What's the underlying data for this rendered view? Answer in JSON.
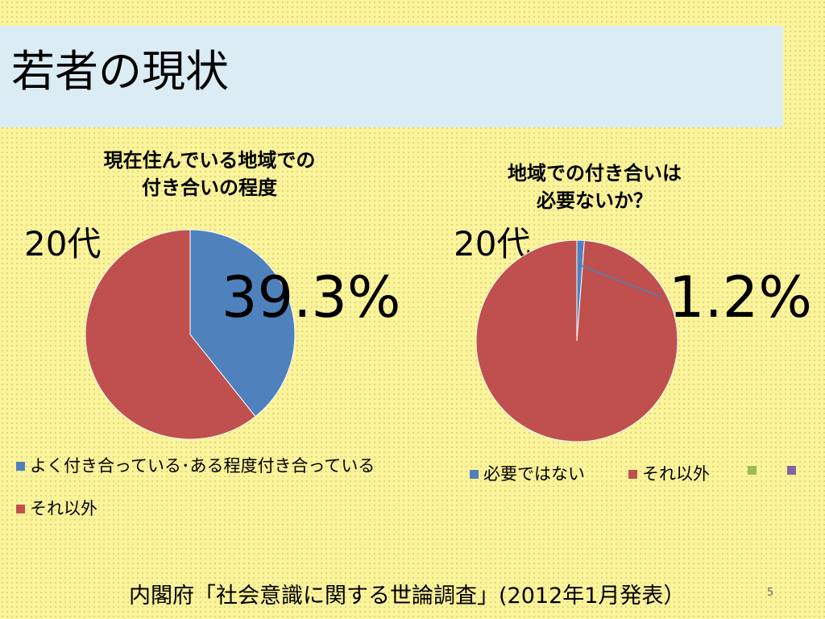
{
  "slide": {
    "title": "若者の現状",
    "source": "内閣府「社会意識に関する世論調査」(2012年1月発表）",
    "page_number": "5"
  },
  "colors": {
    "series_blue": "#4f81bd",
    "series_red": "#c0504d",
    "series_green": "#9bbb59",
    "series_purple": "#8064a2"
  },
  "charts": {
    "left": {
      "title_line1": "現在住んでいる地域での",
      "title_line2": "付き合いの程度",
      "age_label": "20代",
      "highlight_label": "39.3%",
      "legend": [
        "よく付き合っている･ある程度付き合っている",
        "それ以外"
      ]
    },
    "right": {
      "title_line1": "地域での付き合いは",
      "title_line2": "必要ないか？",
      "age_label": "20代",
      "highlight_label": "1.2%",
      "legend": [
        "必要ではない",
        "それ以外",
        "",
        ""
      ]
    }
  },
  "chart_data": [
    {
      "type": "pie",
      "title": "現在住んでいる地域での付き合いの程度",
      "categories": [
        "よく付き合っている･ある程度付き合っている",
        "それ以外"
      ],
      "values": [
        39.3,
        60.7
      ],
      "colors": [
        "#4f81bd",
        "#c0504d"
      ]
    },
    {
      "type": "pie",
      "title": "地域での付き合いは必要ないか？",
      "categories": [
        "必要ではない",
        "それ以外"
      ],
      "values": [
        1.2,
        98.8
      ],
      "colors": [
        "#4f81bd",
        "#c0504d"
      ]
    }
  ]
}
